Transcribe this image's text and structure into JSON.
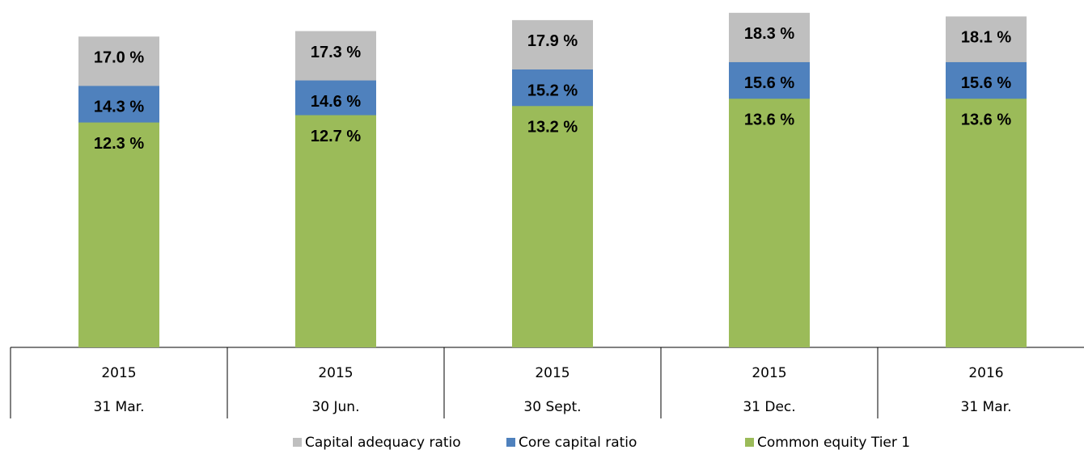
{
  "chart_data": {
    "type": "overlap_bar",
    "categories": [
      [
        "2015",
        "31 Mar."
      ],
      [
        "2015",
        "30 Jun."
      ],
      [
        "2015",
        "30 Sept."
      ],
      [
        "2015",
        "31 Dec."
      ],
      [
        "2016",
        "31 Mar."
      ]
    ],
    "series": [
      {
        "name": "Capital adequacy ratio",
        "color": "#bfbfbf",
        "values": [
          17.0,
          17.3,
          17.9,
          18.3,
          18.1
        ],
        "value_labels": [
          "17.0 %",
          "17.3 %",
          "17.9 %",
          "18.3 %",
          "18.1 %"
        ]
      },
      {
        "name": "Core capital ratio",
        "color": "#4f81bd",
        "values": [
          14.3,
          14.6,
          15.2,
          15.6,
          15.6
        ],
        "value_labels": [
          "14.3 %",
          "14.6 %",
          "15.2 %",
          "15.6 %",
          "15.6 %"
        ]
      },
      {
        "name": "Common equity Tier 1",
        "color": "#9bbb59",
        "values": [
          12.3,
          12.7,
          13.2,
          13.6,
          13.6
        ],
        "value_labels": [
          "12.3 %",
          "12.7 %",
          "13.2 %",
          "13.6 %",
          "13.6 %"
        ]
      }
    ],
    "ylim": [
      0,
      19
    ],
    "legend": "bottom"
  }
}
